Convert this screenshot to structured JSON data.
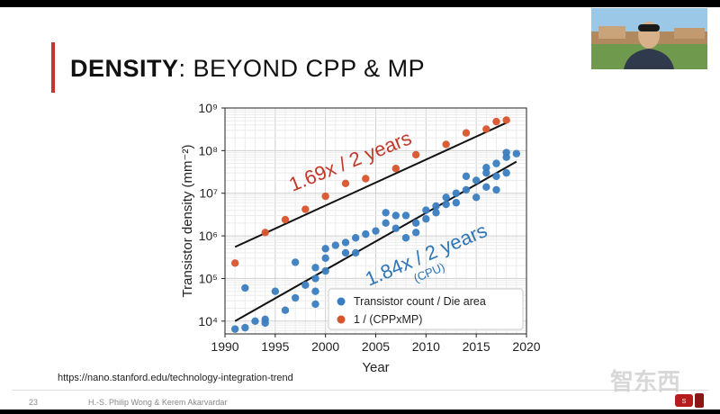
{
  "slide": {
    "title_bold": "DENSITY",
    "title_rest": ": BEYOND CPP & MP",
    "url": "https://nano.stanford.edu/technology-integration-trend",
    "page_number": "23",
    "authors": "H.-S. Philip Wong & Kerem Akarvardar",
    "watermark": "智东西",
    "accent_color": "#c0392b"
  },
  "chart_data": {
    "type": "scatter",
    "xlabel": "Year",
    "ylabel": "Transistor density (mm⁻²)",
    "xlim": [
      1990,
      2020
    ],
    "ylim_log10": [
      3.7,
      9.0
    ],
    "y_scale": "log",
    "x_ticks": [
      1990,
      1995,
      2000,
      2005,
      2010,
      2015,
      2020
    ],
    "y_ticks": [
      "10⁴",
      "10⁵",
      "10⁶",
      "10⁷",
      "10⁸",
      "10⁹"
    ],
    "grid": true,
    "legend_placement": "bottom-right",
    "annotations": {
      "red_trend_label": "1.69x / 2 years",
      "blue_trend_label": "1.84x / 2 years",
      "blue_trend_sub": "(CPU)"
    },
    "series": [
      {
        "name": "Transistor count / Die area",
        "color": "#3a7dc0",
        "points": [
          [
            1991,
            6500
          ],
          [
            1992,
            7000
          ],
          [
            1992,
            60000
          ],
          [
            1993,
            10000
          ],
          [
            1994,
            9000
          ],
          [
            1994,
            11000
          ],
          [
            1995,
            50000
          ],
          [
            1996,
            18000
          ],
          [
            1997,
            35000
          ],
          [
            1997,
            240000
          ],
          [
            1998,
            70000
          ],
          [
            1999,
            25000
          ],
          [
            1999,
            50000
          ],
          [
            1999,
            100000
          ],
          [
            1999,
            180000
          ],
          [
            2000,
            150000
          ],
          [
            2000,
            300000
          ],
          [
            2000,
            500000
          ],
          [
            2001,
            600000
          ],
          [
            2002,
            400000
          ],
          [
            2002,
            700000
          ],
          [
            2003,
            900000
          ],
          [
            2003,
            400000
          ],
          [
            2004,
            1100000
          ],
          [
            2005,
            1300000
          ],
          [
            2006,
            2000000
          ],
          [
            2006,
            3500000
          ],
          [
            2007,
            1500000
          ],
          [
            2007,
            3000000
          ],
          [
            2008,
            3000000
          ],
          [
            2008,
            900000
          ],
          [
            2009,
            1200000
          ],
          [
            2009,
            2000000
          ],
          [
            2010,
            2500000
          ],
          [
            2010,
            4000000
          ],
          [
            2011,
            3500000
          ],
          [
            2011,
            5000000
          ],
          [
            2012,
            5500000
          ],
          [
            2012,
            8000000
          ],
          [
            2013,
            6000000
          ],
          [
            2013,
            10000000
          ],
          [
            2014,
            12000000
          ],
          [
            2014,
            25000000
          ],
          [
            2015,
            20000000
          ],
          [
            2015,
            8000000
          ],
          [
            2016,
            14000000
          ],
          [
            2016,
            30000000
          ],
          [
            2016,
            40000000
          ],
          [
            2017,
            12000000
          ],
          [
            2017,
            25000000
          ],
          [
            2017,
            50000000
          ],
          [
            2018,
            30000000
          ],
          [
            2018,
            70000000
          ],
          [
            2018,
            90000000
          ],
          [
            2019,
            85000000
          ]
        ]
      },
      {
        "name": "1 / (CPPxMP)",
        "color": "#d9542c",
        "points": [
          [
            1991,
            230000
          ],
          [
            1994,
            1200000
          ],
          [
            1996,
            2400000
          ],
          [
            1998,
            4200000
          ],
          [
            2000,
            8500000
          ],
          [
            2002,
            17000000
          ],
          [
            2004,
            22000000
          ],
          [
            2007,
            38000000
          ],
          [
            2009,
            80000000
          ],
          [
            2012,
            140000000
          ],
          [
            2014,
            260000000
          ],
          [
            2016,
            320000000
          ],
          [
            2017,
            480000000
          ],
          [
            2018,
            520000000
          ]
        ]
      }
    ],
    "trend_lines": [
      {
        "name": "red-trend",
        "from": [
          1991,
          550000
        ],
        "to": [
          2018,
          450000000
        ]
      },
      {
        "name": "blue-trend",
        "from": [
          1991,
          10000
        ],
        "to": [
          2019,
          55000000
        ]
      }
    ]
  }
}
